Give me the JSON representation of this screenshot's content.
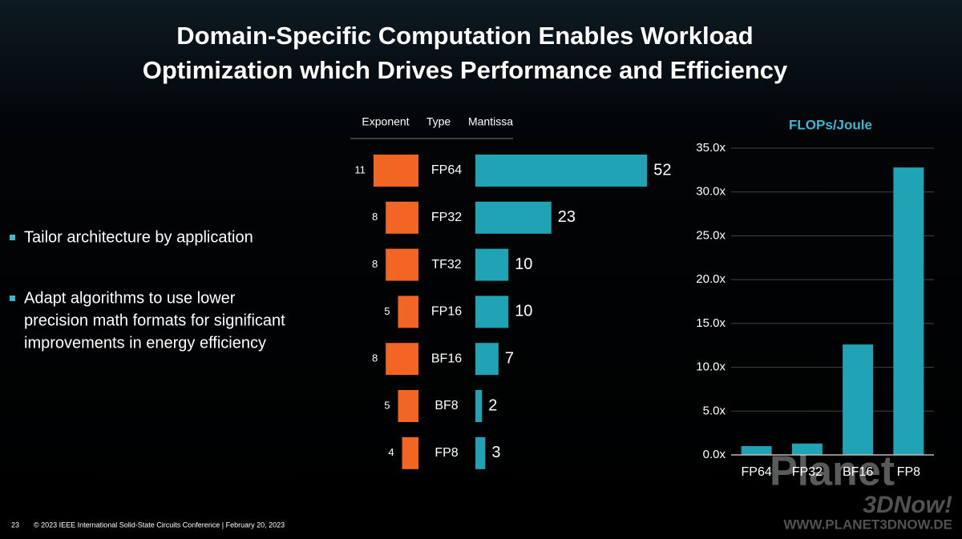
{
  "title": [
    "Domain-Specific Computation Enables Workload",
    "Optimization which Drives Performance and Efficiency"
  ],
  "bullets": [
    [
      "Tailor architecture by application"
    ],
    [
      "Adapt algorithms to use lower",
      "precision math formats for significant",
      "improvements in energy efficiency"
    ]
  ],
  "footer": {
    "page": "23",
    "text": "© 2023 IEEE International Solid-State Circuits Conference  |  February 20, 2023"
  },
  "watermark": [
    "Planet",
    "3DNow!",
    "WWW.PLANET3DNOW.DE"
  ],
  "chart_data": [
    {
      "type": "format-bars",
      "column_headers": [
        "Exponent",
        "Type",
        "Mantissa"
      ],
      "categories": [
        "FP64",
        "FP32",
        "TF32",
        "FP16",
        "BF16",
        "BF8",
        "FP8"
      ],
      "series": [
        {
          "name": "Exponent",
          "color": "#f26522",
          "values": [
            11,
            8,
            8,
            5,
            8,
            5,
            4
          ]
        },
        {
          "name": "Mantissa",
          "color": "#1fa3b5",
          "values": [
            52,
            23,
            10,
            10,
            7,
            2,
            3
          ]
        }
      ]
    },
    {
      "type": "bar",
      "title": "FLOPs/Joule",
      "categories": [
        "FP64",
        "FP32",
        "BF16",
        "FP8"
      ],
      "values": [
        1.0,
        1.3,
        12.6,
        32.8
      ],
      "color": "#1fa3b5",
      "ylim": [
        0,
        35
      ],
      "yticks": [
        {
          "value": 0,
          "label": "0.0x"
        },
        {
          "value": 5,
          "label": "5.0x"
        },
        {
          "value": 10,
          "label": "10.0x"
        },
        {
          "value": 15,
          "label": "15.0x"
        },
        {
          "value": 20,
          "label": "20.0x"
        },
        {
          "value": 25,
          "label": "25.0x"
        },
        {
          "value": 30,
          "label": "30.0x"
        },
        {
          "value": 35,
          "label": "35.0x"
        }
      ],
      "grid": true
    }
  ]
}
